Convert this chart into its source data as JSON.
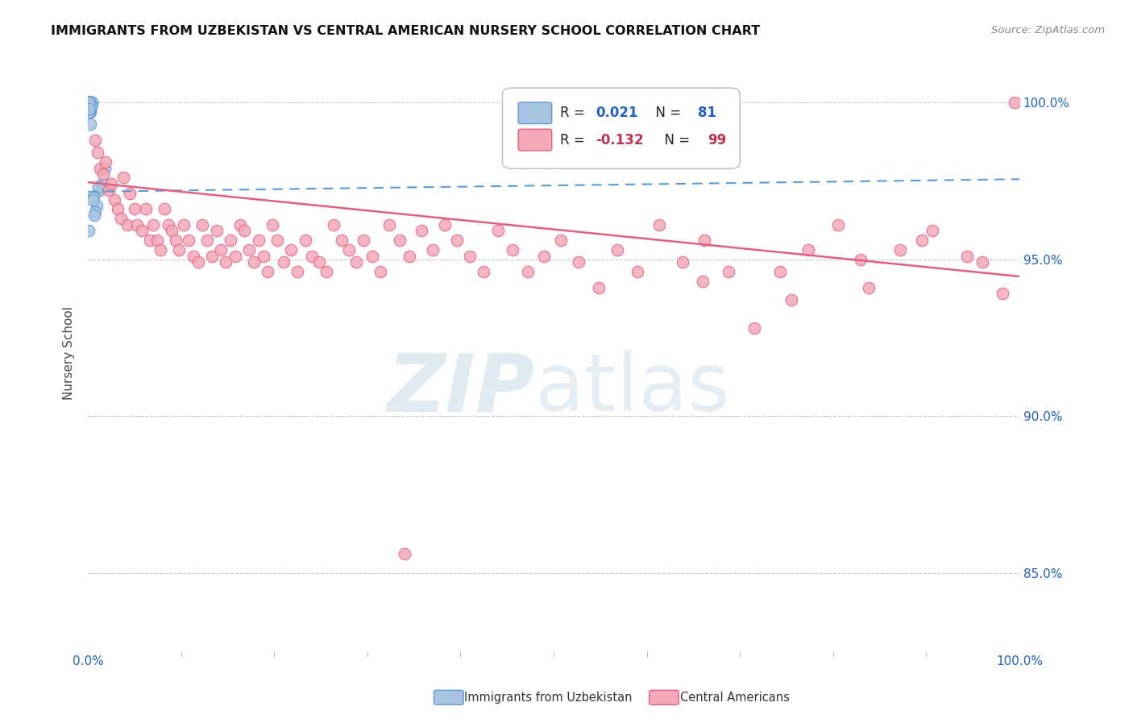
{
  "title": "IMMIGRANTS FROM UZBEKISTAN VS CENTRAL AMERICAN NURSERY SCHOOL CORRELATION CHART",
  "source": "Source: ZipAtlas.com",
  "ylabel": "Nursery School",
  "ytick_labels": [
    "85.0%",
    "90.0%",
    "95.0%",
    "100.0%"
  ],
  "ytick_values": [
    0.85,
    0.9,
    0.95,
    1.0
  ],
  "xmin": 0.0,
  "xmax": 1.0,
  "ymin": 0.825,
  "ymax": 1.015,
  "color_blue": "#a8c4e0",
  "color_pink": "#f4a8b8",
  "color_blue_edge": "#5b9bd5",
  "color_pink_edge": "#e06080",
  "color_blue_text": "#2060c0",
  "color_pink_text": "#c03050",
  "color_grid": "#c8c8d0",
  "blue_line_start_y": 0.9715,
  "blue_line_end_y": 0.9755,
  "pink_line_start_y": 0.9745,
  "pink_line_end_y": 0.9445,
  "uz_x": [
    0.0005,
    0.001,
    0.0015,
    0.0008,
    0.002,
    0.0012,
    0.0006,
    0.0018,
    0.0025,
    0.001,
    0.0007,
    0.0014,
    0.002,
    0.0016,
    0.0009,
    0.0011,
    0.0019,
    0.0004,
    0.0013,
    0.0021,
    0.0003,
    0.0017,
    0.001,
    0.0015,
    0.003,
    0.0006,
    0.0012,
    0.002,
    0.0008,
    0.0016,
    0.0005,
    0.004,
    0.0011,
    0.002,
    0.0007,
    0.0014,
    0.0022,
    0.0018,
    0.001,
    0.0004,
    0.003,
    0.0009,
    0.0017,
    0.0005,
    0.0025,
    0.0013,
    0.0006,
    0.002,
    0.001,
    0.0004,
    0.0008,
    0.0016,
    0.0003,
    0.0021,
    0.0011,
    0.004,
    0.0019,
    0.001,
    0.0006,
    0.0015,
    0.0009,
    0.0005,
    0.002,
    0.0013,
    0.0018,
    0.0007,
    0.0012,
    0.003,
    0.0004,
    0.0016,
    0.012,
    0.009,
    0.006,
    0.008,
    0.015,
    0.018,
    0.005,
    0.007,
    0.011,
    0.002,
    0.001
  ],
  "uz_y": [
    1.0,
    0.999,
    1.0,
    0.998,
    1.0,
    0.999,
    0.998,
    1.0,
    1.0,
    0.998,
    0.999,
    1.0,
    0.999,
    0.998,
    1.0,
    0.999,
    0.998,
    1.0,
    0.999,
    0.997,
    0.998,
    1.0,
    0.999,
    0.998,
    1.0,
    0.999,
    0.998,
    1.0,
    0.999,
    0.998,
    1.0,
    1.0,
    0.999,
    0.998,
    1.0,
    0.999,
    0.998,
    1.0,
    0.999,
    1.0,
    0.999,
    0.998,
    0.997,
    1.0,
    0.999,
    0.998,
    1.0,
    0.999,
    0.998,
    1.0,
    0.998,
    0.999,
    1.0,
    0.999,
    0.998,
    1.0,
    0.999,
    0.998,
    1.0,
    0.999,
    0.998,
    0.997,
    0.999,
    1.0,
    0.999,
    0.998,
    1.0,
    0.999,
    1.0,
    0.998,
    0.972,
    0.967,
    0.97,
    0.965,
    0.974,
    0.979,
    0.969,
    0.964,
    0.973,
    0.993,
    0.959
  ],
  "ca_x": [
    0.008,
    0.01,
    0.013,
    0.016,
    0.019,
    0.022,
    0.025,
    0.028,
    0.032,
    0.035,
    0.038,
    0.042,
    0.045,
    0.05,
    0.053,
    0.058,
    0.062,
    0.066,
    0.07,
    0.074,
    0.078,
    0.082,
    0.086,
    0.09,
    0.094,
    0.098,
    0.103,
    0.108,
    0.113,
    0.118,
    0.123,
    0.128,
    0.133,
    0.138,
    0.143,
    0.148,
    0.153,
    0.158,
    0.163,
    0.168,
    0.173,
    0.178,
    0.183,
    0.188,
    0.193,
    0.198,
    0.203,
    0.21,
    0.218,
    0.225,
    0.233,
    0.24,
    0.248,
    0.256,
    0.264,
    0.272,
    0.28,
    0.288,
    0.296,
    0.305,
    0.314,
    0.323,
    0.335,
    0.345,
    0.358,
    0.37,
    0.383,
    0.396,
    0.41,
    0.425,
    0.44,
    0.456,
    0.472,
    0.49,
    0.508,
    0.527,
    0.548,
    0.568,
    0.59,
    0.613,
    0.638,
    0.34,
    0.662,
    0.688,
    0.715,
    0.743,
    0.773,
    0.805,
    0.838,
    0.872,
    0.907,
    0.944,
    0.982,
    0.66,
    0.755,
    0.83,
    0.895,
    0.96,
    0.995
  ],
  "ca_y": [
    0.988,
    0.984,
    0.979,
    0.977,
    0.981,
    0.972,
    0.974,
    0.969,
    0.966,
    0.963,
    0.976,
    0.961,
    0.971,
    0.966,
    0.961,
    0.959,
    0.966,
    0.956,
    0.961,
    0.956,
    0.953,
    0.966,
    0.961,
    0.959,
    0.956,
    0.953,
    0.961,
    0.956,
    0.951,
    0.949,
    0.961,
    0.956,
    0.951,
    0.959,
    0.953,
    0.949,
    0.956,
    0.951,
    0.961,
    0.959,
    0.953,
    0.949,
    0.956,
    0.951,
    0.946,
    0.961,
    0.956,
    0.949,
    0.953,
    0.946,
    0.956,
    0.951,
    0.949,
    0.946,
    0.961,
    0.956,
    0.953,
    0.949,
    0.956,
    0.951,
    0.946,
    0.961,
    0.956,
    0.951,
    0.959,
    0.953,
    0.961,
    0.956,
    0.951,
    0.946,
    0.959,
    0.953,
    0.946,
    0.951,
    0.956,
    0.949,
    0.941,
    0.953,
    0.946,
    0.961,
    0.949,
    0.856,
    0.956,
    0.946,
    0.928,
    0.946,
    0.953,
    0.961,
    0.941,
    0.953,
    0.959,
    0.951,
    0.939,
    0.943,
    0.937,
    0.95,
    0.956,
    0.949,
    1.0
  ]
}
